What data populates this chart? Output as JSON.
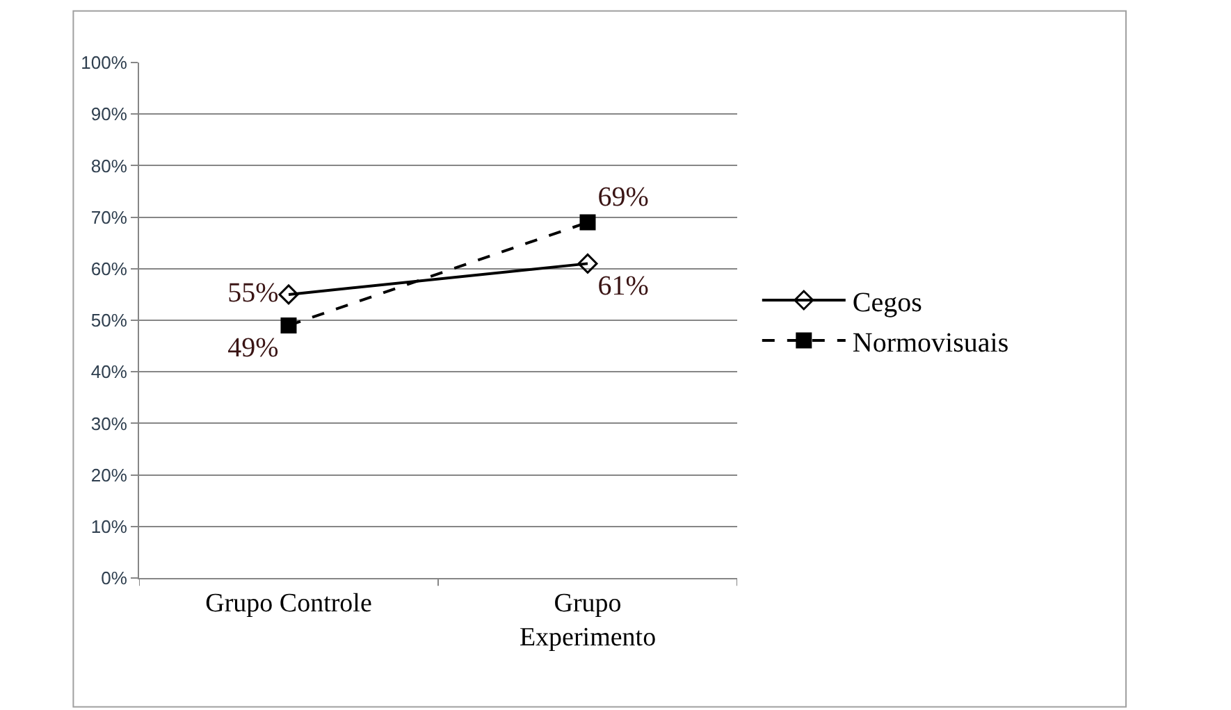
{
  "chart_data": {
    "type": "line",
    "categories": [
      "Grupo Controle",
      "Grupo Experimento"
    ],
    "series": [
      {
        "name": "Cegos",
        "color": "#000000",
        "values": [
          55,
          61
        ],
        "value_labels": [
          "55%",
          "61%"
        ],
        "marker": "diamond",
        "line_style": "solid"
      },
      {
        "name": "Normovisuais",
        "color": "#000000",
        "values": [
          49,
          69
        ],
        "value_labels": [
          "49%",
          "69%"
        ],
        "marker": "square",
        "line_style": "dashed"
      }
    ],
    "ylim": [
      0,
      100
    ],
    "yticks": [
      {
        "value": 0,
        "label": "0%"
      },
      {
        "value": 10,
        "label": "10%"
      },
      {
        "value": 20,
        "label": "20%"
      },
      {
        "value": 30,
        "label": "30%"
      },
      {
        "value": 40,
        "label": "40%"
      },
      {
        "value": 50,
        "label": "50%"
      },
      {
        "value": 60,
        "label": "60%"
      },
      {
        "value": 70,
        "label": "70%"
      },
      {
        "value": 80,
        "label": "80%"
      },
      {
        "value": 90,
        "label": "90%"
      },
      {
        "value": 100,
        "label": "100%"
      }
    ],
    "grid": "y",
    "legend": "right"
  }
}
